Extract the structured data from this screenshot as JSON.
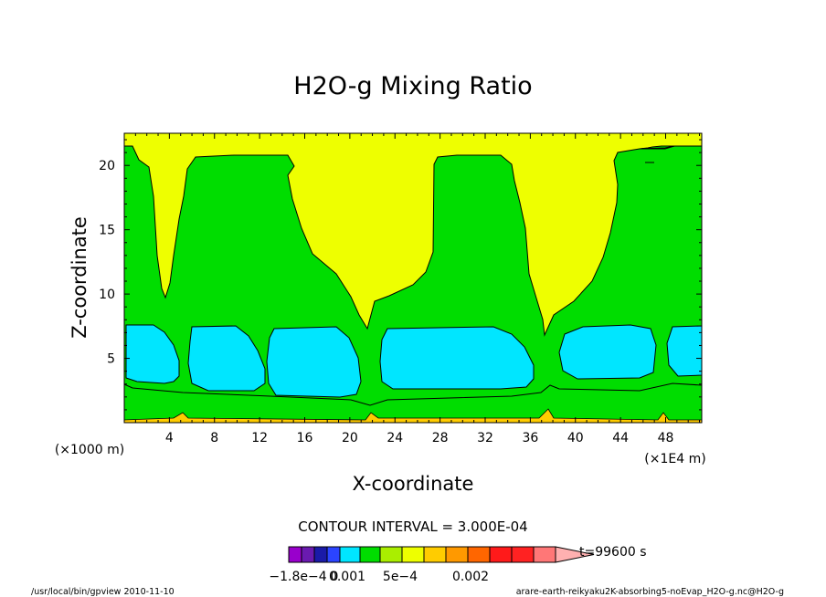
{
  "chart_data": {
    "type": "heatmap",
    "title": "H2O-g Mixing Ratio",
    "xlabel": "X-coordinate",
    "ylabel": "Z-coordinate",
    "x_unit": "(×1E4 m)",
    "y_unit": "(×1000 m)",
    "xlim": [
      0,
      51.2
    ],
    "ylim": [
      0,
      22.5
    ],
    "x_ticks": [
      "4",
      "8",
      "12",
      "16",
      "20",
      "24",
      "28",
      "32",
      "36",
      "40",
      "44",
      "48"
    ],
    "x_tick_values": [
      4,
      8,
      12,
      16,
      20,
      24,
      28,
      32,
      36,
      40,
      44,
      48
    ],
    "y_ticks": [
      "5",
      "10",
      "15",
      "20"
    ],
    "y_tick_values": [
      5,
      10,
      15,
      20
    ],
    "contour_interval_text": "CONTOUR INTERVAL = 3.000E-04",
    "time_text": "t=99600 s",
    "colorbar": {
      "colors": [
        "#9900cc",
        "#6a1ab0",
        "#1a1aa8",
        "#2b44ff",
        "#00e6ff",
        "#00dd00",
        "#aaee00",
        "#eeff00",
        "#ffcc00",
        "#ff9900",
        "#ff6600",
        "#ff1a1a",
        "#ff2222",
        "#ff7777"
      ],
      "arrow_color": "#ffb0b0",
      "labels": [
        "−1.8e−4",
        "0",
        "0.001",
        "5e−4",
        "0.002"
      ]
    },
    "field_colors": {
      "background": "#eeff00",
      "mid": "#00dd00",
      "core": "#00e6ff",
      "surface": "#ffcc00"
    }
  },
  "footer": {
    "left": "/usr/local/bin/gpview  2010-11-10",
    "right": "arare-earth-reikyaku2K-absorbing5-noEvap_H2O-g.nc@H2O-g"
  }
}
